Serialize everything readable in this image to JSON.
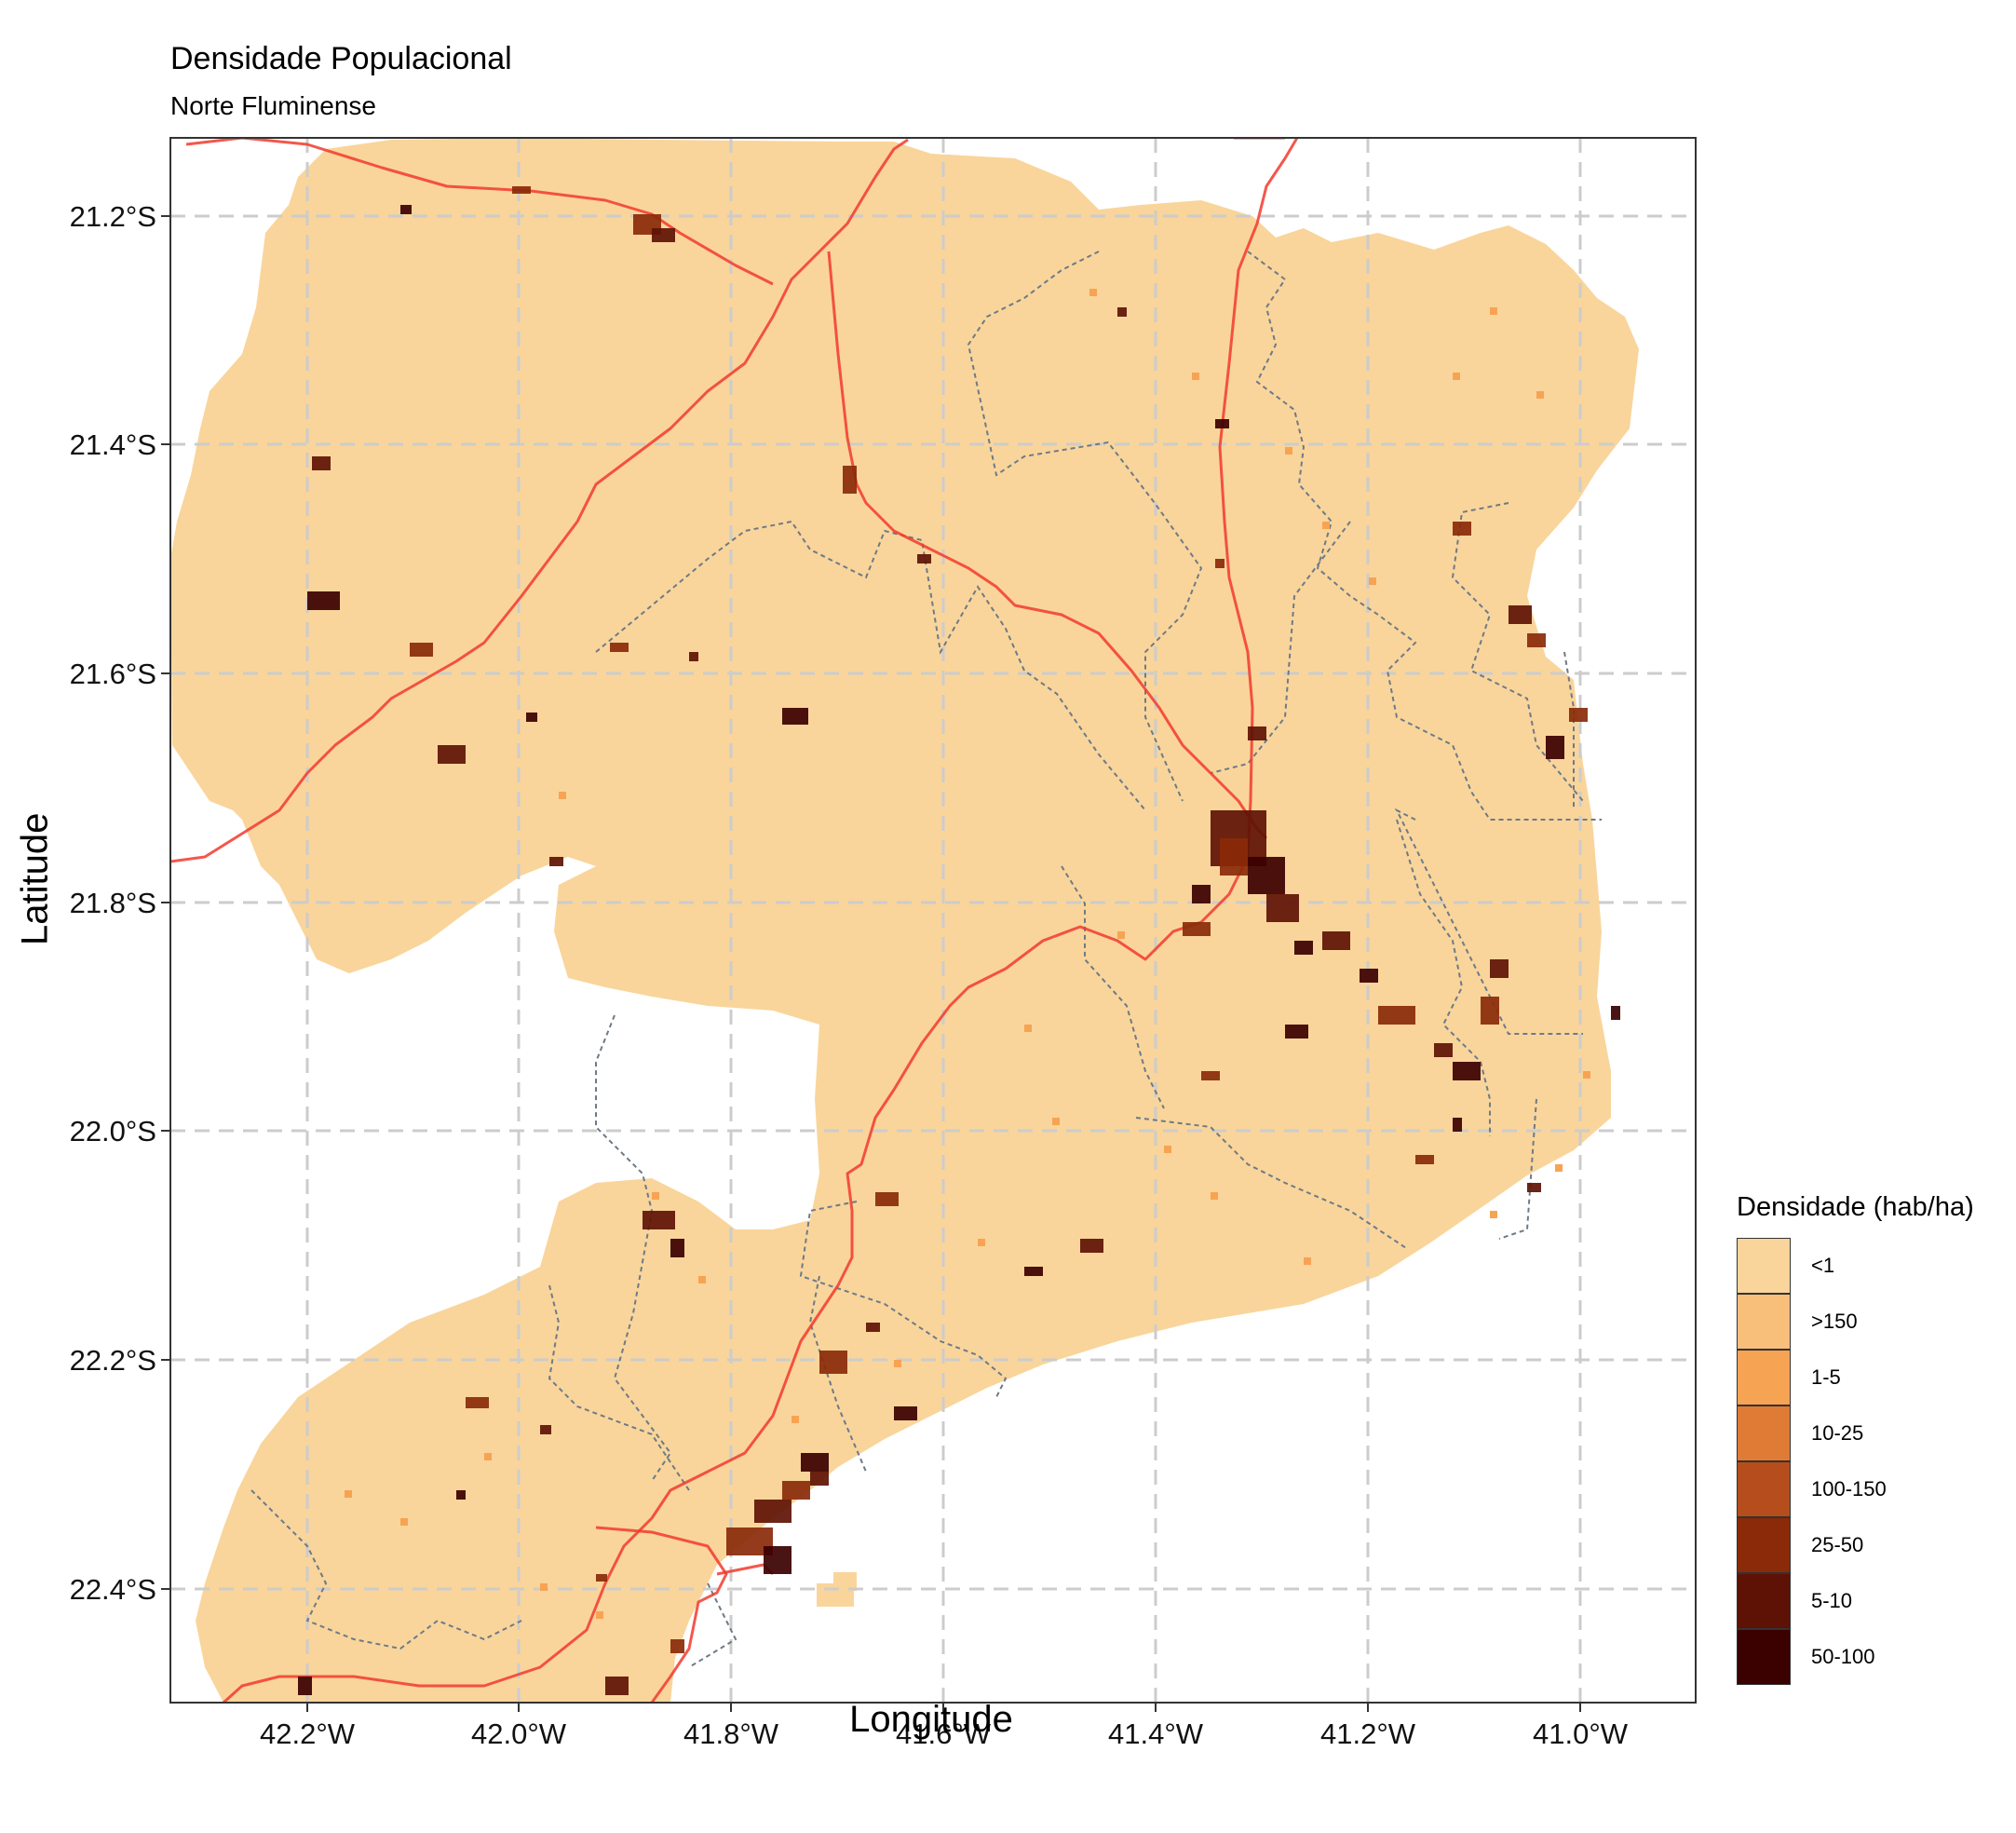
{
  "title": "Densidade Populacional",
  "subtitle": "Norte Fluminense",
  "axes": {
    "xlabel": "Longitude",
    "ylabel": "Latitude",
    "x_ticks": [
      "42.2°W",
      "42.0°W",
      "41.8°W",
      "41.6°W",
      "41.4°W",
      "41.2°W",
      "41.0°W"
    ],
    "y_ticks": [
      "21.2°S",
      "21.4°S",
      "21.6°S",
      "21.8°S",
      "22.0°S",
      "22.2°S",
      "22.4°S"
    ]
  },
  "legend": {
    "title": "Densidade (hab/ha)",
    "items": [
      {
        "label": "<1",
        "color": "#F9D59B"
      },
      {
        "label": ">150",
        "color": "#F8BF7A"
      },
      {
        "label": "1-5",
        "color": "#F7A354"
      },
      {
        "label": "10-25",
        "color": "#E07B35"
      },
      {
        "label": "100-150",
        "color": "#B54E1C"
      },
      {
        "label": "25-50",
        "color": "#8A2A09"
      },
      {
        "label": "5-10",
        "color": "#5E1205"
      },
      {
        "label": "50-100",
        "color": "#3B0000"
      }
    ]
  },
  "colors": {
    "region_fill": "#F9D59B",
    "roads": "#F23A2E",
    "boundaries": "#6E7A86",
    "grid": "#CCCCCC"
  }
}
